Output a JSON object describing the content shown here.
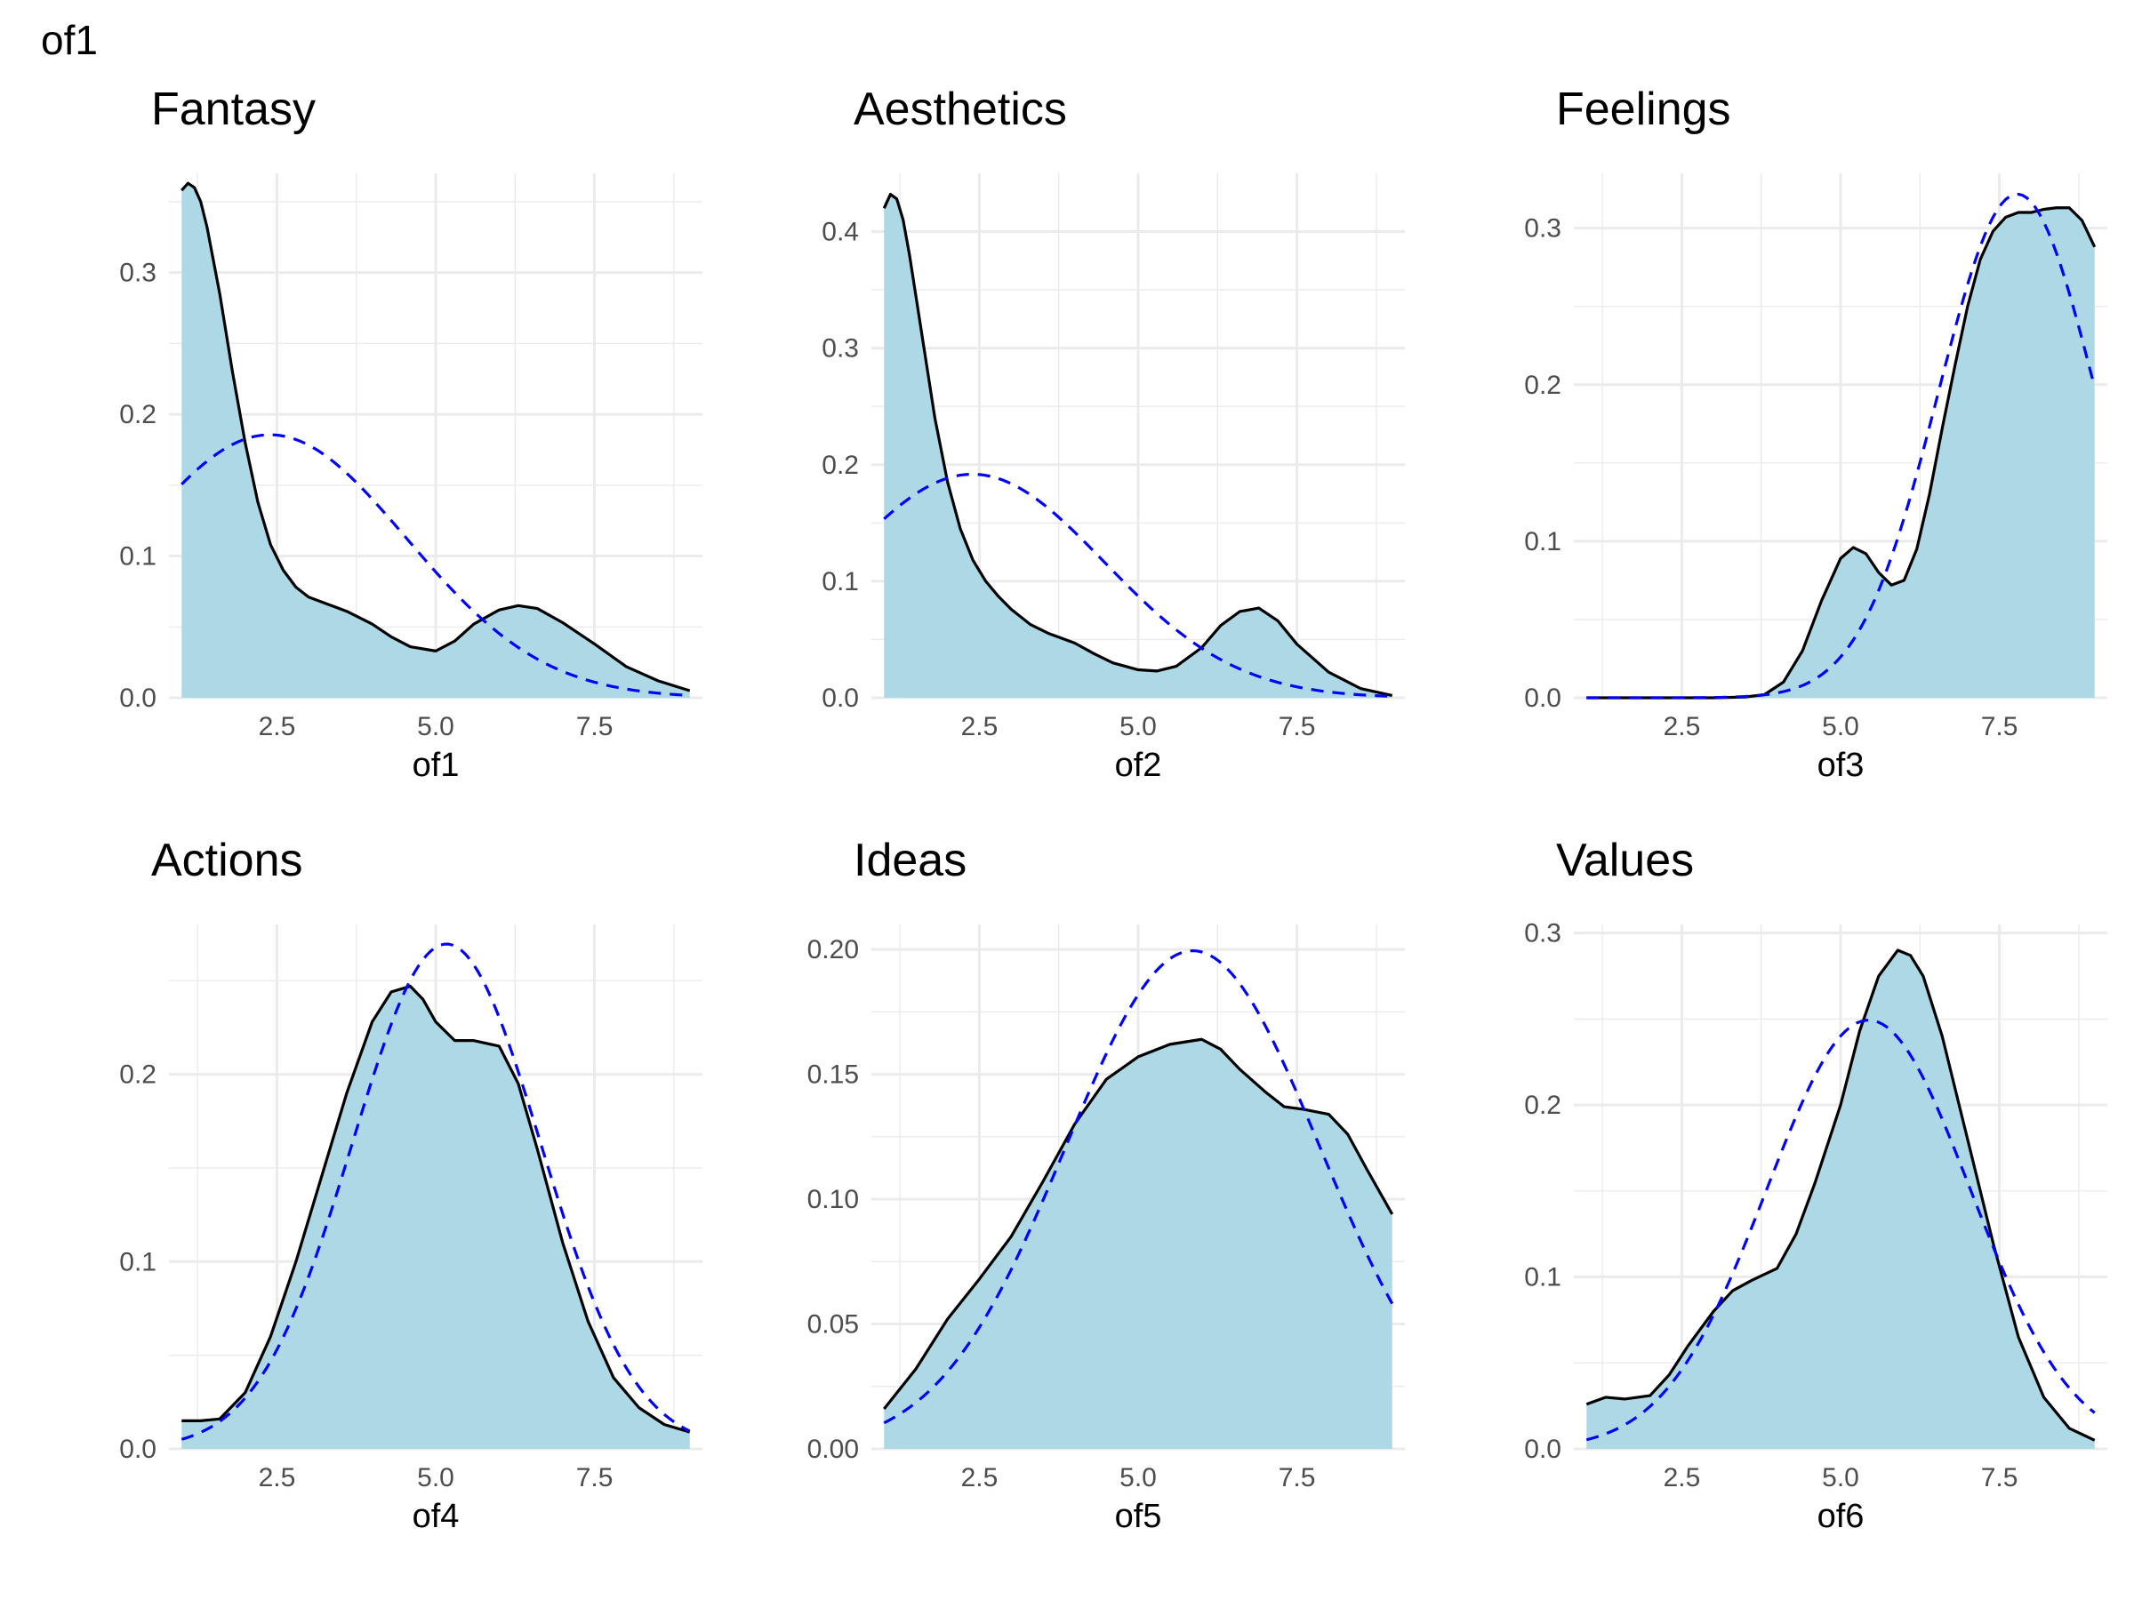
{
  "page_title": "of1",
  "colors": {
    "fill": "#add8e6",
    "density_line": "#000000",
    "normal_line": "#0000ff",
    "grid": "#ebebeb"
  },
  "chart_data": [
    {
      "type": "area",
      "title": "Fantasy",
      "xlabel": "of1",
      "ylabel": "",
      "xlim": [
        0.8,
        9.2
      ],
      "ylim": [
        0,
        0.37
      ],
      "xticks": [
        2.5,
        5.0,
        7.5
      ],
      "xtick_labels": [
        "2.5",
        "5.0",
        "7.5"
      ],
      "yticks": [
        0.0,
        0.1,
        0.2,
        0.3
      ],
      "ytick_labels": [
        "0.0",
        "0.1",
        "0.2",
        "0.3"
      ],
      "grid": true,
      "series": [
        {
          "style": "fill-solid",
          "x": [
            1,
            1.1,
            1.2,
            1.3,
            1.4,
            1.6,
            1.8,
            2.0,
            2.2,
            2.4,
            2.6,
            2.8,
            3.0,
            3.3,
            3.6,
            4.0,
            4.3,
            4.6,
            5.0,
            5.3,
            5.6,
            6.0,
            6.3,
            6.6,
            7.0,
            7.5,
            8.0,
            8.5,
            9.0
          ],
          "y": [
            0.358,
            0.363,
            0.36,
            0.35,
            0.332,
            0.285,
            0.23,
            0.18,
            0.138,
            0.108,
            0.09,
            0.078,
            0.071,
            0.066,
            0.061,
            0.052,
            0.043,
            0.036,
            0.033,
            0.04,
            0.052,
            0.062,
            0.065,
            0.063,
            0.053,
            0.038,
            0.022,
            0.012,
            0.005
          ]
        },
        {
          "style": "dashed",
          "mean": 2.39,
          "sd": 2.15,
          "x_range": [
            1,
            9
          ]
        }
      ]
    },
    {
      "type": "area",
      "title": "Aesthetics",
      "xlabel": "of2",
      "ylabel": "",
      "xlim": [
        0.8,
        9.2
      ],
      "ylim": [
        0,
        0.45
      ],
      "xticks": [
        2.5,
        5.0,
        7.5
      ],
      "xtick_labels": [
        "2.5",
        "5.0",
        "7.5"
      ],
      "yticks": [
        0.0,
        0.1,
        0.2,
        0.3,
        0.4
      ],
      "ytick_labels": [
        "0.0",
        "0.1",
        "0.2",
        "0.3",
        "0.4"
      ],
      "grid": true,
      "series": [
        {
          "style": "fill-solid",
          "x": [
            1,
            1.1,
            1.2,
            1.3,
            1.4,
            1.6,
            1.8,
            2.0,
            2.2,
            2.4,
            2.6,
            2.8,
            3.0,
            3.3,
            3.6,
            4.0,
            4.3,
            4.6,
            5.0,
            5.3,
            5.6,
            6.0,
            6.3,
            6.6,
            6.9,
            7.2,
            7.5,
            8.0,
            8.5,
            9.0
          ],
          "y": [
            0.42,
            0.432,
            0.428,
            0.41,
            0.38,
            0.31,
            0.24,
            0.185,
            0.145,
            0.118,
            0.1,
            0.087,
            0.076,
            0.063,
            0.055,
            0.047,
            0.038,
            0.03,
            0.024,
            0.023,
            0.027,
            0.043,
            0.062,
            0.074,
            0.077,
            0.066,
            0.046,
            0.022,
            0.008,
            0.002
          ]
        },
        {
          "style": "dashed",
          "mean": 2.39,
          "sd": 2.08,
          "x_range": [
            1,
            9
          ]
        }
      ]
    },
    {
      "type": "area",
      "title": "Feelings",
      "xlabel": "of3",
      "ylabel": "",
      "xlim": [
        0.8,
        9.2
      ],
      "ylim": [
        0,
        0.335
      ],
      "xticks": [
        2.5,
        5.0,
        7.5
      ],
      "xtick_labels": [
        "2.5",
        "5.0",
        "7.5"
      ],
      "yticks": [
        0.0,
        0.1,
        0.2,
        0.3
      ],
      "ytick_labels": [
        "0.0",
        "0.1",
        "0.2",
        "0.3"
      ],
      "grid": true,
      "series": [
        {
          "style": "fill-solid",
          "x": [
            1,
            2,
            3,
            3.5,
            3.8,
            4.1,
            4.4,
            4.7,
            5.0,
            5.2,
            5.4,
            5.6,
            5.8,
            6.0,
            6.2,
            6.4,
            6.6,
            6.8,
            7.0,
            7.2,
            7.4,
            7.6,
            7.8,
            8.0,
            8.2,
            8.4,
            8.6,
            8.8,
            9.0
          ],
          "y": [
            0.0,
            0.0,
            0.0,
            0.0005,
            0.002,
            0.01,
            0.03,
            0.062,
            0.089,
            0.096,
            0.092,
            0.08,
            0.072,
            0.075,
            0.095,
            0.13,
            0.172,
            0.212,
            0.25,
            0.28,
            0.298,
            0.307,
            0.31,
            0.31,
            0.312,
            0.313,
            0.313,
            0.305,
            0.288
          ]
        },
        {
          "style": "dashed",
          "mean": 7.78,
          "sd": 1.24,
          "x_range": [
            1,
            9
          ]
        }
      ]
    },
    {
      "type": "area",
      "title": "Actions",
      "xlabel": "of4",
      "ylabel": "",
      "xlim": [
        0.8,
        9.2
      ],
      "ylim": [
        0,
        0.28
      ],
      "xticks": [
        2.5,
        5.0,
        7.5
      ],
      "xtick_labels": [
        "2.5",
        "5.0",
        "7.5"
      ],
      "yticks": [
        0.0,
        0.1,
        0.2
      ],
      "ytick_labels": [
        "0.0",
        "0.1",
        "0.2"
      ],
      "grid": true,
      "series": [
        {
          "style": "fill-solid",
          "x": [
            1,
            1.3,
            1.6,
            2.0,
            2.4,
            2.8,
            3.2,
            3.6,
            4.0,
            4.3,
            4.6,
            4.8,
            5.0,
            5.3,
            5.6,
            6.0,
            6.3,
            6.6,
            7.0,
            7.4,
            7.8,
            8.2,
            8.6,
            9.0
          ],
          "y": [
            0.015,
            0.015,
            0.016,
            0.03,
            0.06,
            0.1,
            0.145,
            0.19,
            0.228,
            0.244,
            0.247,
            0.24,
            0.228,
            0.218,
            0.218,
            0.215,
            0.195,
            0.16,
            0.11,
            0.068,
            0.038,
            0.022,
            0.013,
            0.009
          ]
        },
        {
          "style": "dashed",
          "mean": 5.17,
          "sd": 1.48,
          "x_range": [
            1,
            9
          ]
        }
      ]
    },
    {
      "type": "area",
      "title": "Ideas",
      "xlabel": "of5",
      "ylabel": "",
      "xlim": [
        0.8,
        9.2
      ],
      "ylim": [
        0,
        0.21
      ],
      "xticks": [
        2.5,
        5.0,
        7.5
      ],
      "xtick_labels": [
        "2.5",
        "5.0",
        "7.5"
      ],
      "yticks": [
        0.0,
        0.05,
        0.1,
        0.15,
        0.2
      ],
      "ytick_labels": [
        "0.00",
        "0.05",
        "0.10",
        "0.15",
        "0.20"
      ],
      "grid": true,
      "series": [
        {
          "style": "fill-solid",
          "x": [
            1,
            1.5,
            2.0,
            2.5,
            3.0,
            3.5,
            4.0,
            4.5,
            5.0,
            5.5,
            6.0,
            6.3,
            6.6,
            7.0,
            7.3,
            7.6,
            8.0,
            8.3,
            8.6,
            9.0
          ],
          "y": [
            0.016,
            0.032,
            0.052,
            0.068,
            0.085,
            0.107,
            0.13,
            0.148,
            0.157,
            0.162,
            0.164,
            0.16,
            0.152,
            0.143,
            0.137,
            0.136,
            0.134,
            0.126,
            0.112,
            0.094
          ]
        },
        {
          "style": "dashed",
          "mean": 5.86,
          "sd": 2.0,
          "x_range": [
            1,
            9
          ]
        }
      ]
    },
    {
      "type": "area",
      "title": "Values",
      "xlabel": "of6",
      "ylabel": "",
      "xlim": [
        0.8,
        9.2
      ],
      "ylim": [
        0,
        0.305
      ],
      "xticks": [
        2.5,
        5.0,
        7.5
      ],
      "xtick_labels": [
        "2.5",
        "5.0",
        "7.5"
      ],
      "yticks": [
        0.0,
        0.1,
        0.2,
        0.3
      ],
      "ytick_labels": [
        "0.0",
        "0.1",
        "0.2",
        "0.3"
      ],
      "grid": true,
      "series": [
        {
          "style": "fill-solid",
          "x": [
            1,
            1.3,
            1.6,
            2.0,
            2.3,
            2.6,
            3.0,
            3.3,
            3.6,
            4.0,
            4.3,
            4.6,
            5.0,
            5.3,
            5.6,
            5.9,
            6.1,
            6.3,
            6.6,
            7.0,
            7.4,
            7.8,
            8.2,
            8.6,
            9.0
          ],
          "y": [
            0.026,
            0.03,
            0.029,
            0.031,
            0.043,
            0.06,
            0.08,
            0.092,
            0.098,
            0.105,
            0.125,
            0.155,
            0.2,
            0.243,
            0.275,
            0.29,
            0.287,
            0.275,
            0.24,
            0.18,
            0.12,
            0.065,
            0.03,
            0.012,
            0.005
          ]
        },
        {
          "style": "dashed",
          "mean": 5.44,
          "sd": 1.6,
          "x_range": [
            1,
            9
          ]
        }
      ]
    }
  ]
}
